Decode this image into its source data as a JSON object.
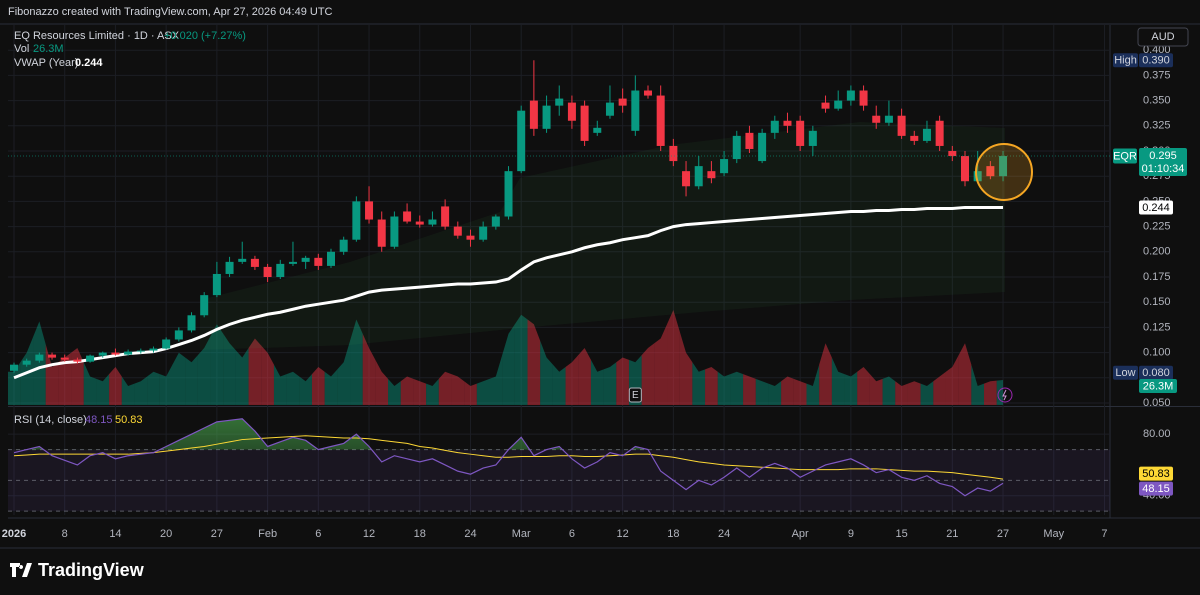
{
  "header": {
    "text": "Fibonazzo created with TradingView.com, Apr 27, 2026 04:49 UTC"
  },
  "footer": {
    "brand": "TradingView"
  },
  "chart_data": [
    {
      "type": "candlestick",
      "title": "EQ Resources Limited · 1D · ASX",
      "change_label": "+0.020 (+7.27%)",
      "currency": "AUD",
      "categories": [
        "2026-01-02",
        "2026-01-05",
        "2026-01-06",
        "2026-01-07",
        "2026-01-08",
        "2026-01-09",
        "2026-01-12",
        "2026-01-13",
        "2026-01-14",
        "2026-01-15",
        "2026-01-16",
        "2026-01-19",
        "2026-01-20",
        "2026-01-21",
        "2026-01-22",
        "2026-01-23",
        "2026-01-27",
        "2026-01-28",
        "2026-01-29",
        "2026-01-30",
        "2026-02-02",
        "2026-02-03",
        "2026-02-04",
        "2026-02-05",
        "2026-02-06",
        "2026-02-09",
        "2026-02-10",
        "2026-02-11",
        "2026-02-12",
        "2026-02-13",
        "2026-02-16",
        "2026-02-17",
        "2026-02-18",
        "2026-02-19",
        "2026-02-20",
        "2026-02-23",
        "2026-02-24",
        "2026-02-25",
        "2026-02-26",
        "2026-02-27",
        "2026-03-02",
        "2026-03-03",
        "2026-03-04",
        "2026-03-05",
        "2026-03-06",
        "2026-03-09",
        "2026-03-10",
        "2026-03-11",
        "2026-03-12",
        "2026-03-13",
        "2026-03-16",
        "2026-03-17",
        "2026-03-18",
        "2026-03-19",
        "2026-03-20",
        "2026-03-23",
        "2026-03-24",
        "2026-03-25",
        "2026-03-26",
        "2026-03-27",
        "2026-03-30",
        "2026-03-31",
        "2026-04-01",
        "2026-04-02",
        "2026-04-07",
        "2026-04-08",
        "2026-04-09",
        "2026-04-10",
        "2026-04-13",
        "2026-04-14",
        "2026-04-15",
        "2026-04-16",
        "2026-04-17",
        "2026-04-20",
        "2026-04-21",
        "2026-04-22",
        "2026-04-23",
        "2026-04-24",
        "2026-04-27"
      ],
      "open": [
        0.082,
        0.088,
        0.092,
        0.098,
        0.095,
        0.093,
        0.091,
        0.097,
        0.1,
        0.098,
        0.101,
        0.102,
        0.104,
        0.113,
        0.122,
        0.137,
        0.157,
        0.178,
        0.19,
        0.193,
        0.185,
        0.175,
        0.188,
        0.19,
        0.194,
        0.186,
        0.2,
        0.212,
        0.25,
        0.232,
        0.205,
        0.24,
        0.23,
        0.227,
        0.245,
        0.225,
        0.216,
        0.212,
        0.225,
        0.235,
        0.28,
        0.35,
        0.322,
        0.345,
        0.348,
        0.345,
        0.318,
        0.335,
        0.352,
        0.32,
        0.36,
        0.355,
        0.305,
        0.28,
        0.265,
        0.28,
        0.278,
        0.292,
        0.318,
        0.29,
        0.318,
        0.33,
        0.33,
        0.305,
        0.348,
        0.342,
        0.35,
        0.36,
        0.335,
        0.328,
        0.335,
        0.315,
        0.31,
        0.33,
        0.3,
        0.295,
        0.27,
        0.285,
        0.275
      ],
      "high": [
        0.09,
        0.094,
        0.1,
        0.1,
        0.098,
        0.095,
        0.098,
        0.101,
        0.104,
        0.103,
        0.104,
        0.106,
        0.115,
        0.125,
        0.14,
        0.16,
        0.19,
        0.195,
        0.21,
        0.196,
        0.188,
        0.192,
        0.21,
        0.196,
        0.198,
        0.203,
        0.215,
        0.255,
        0.265,
        0.24,
        0.24,
        0.248,
        0.236,
        0.24,
        0.252,
        0.23,
        0.222,
        0.23,
        0.237,
        0.285,
        0.345,
        0.39,
        0.355,
        0.365,
        0.355,
        0.35,
        0.33,
        0.365,
        0.362,
        0.375,
        0.365,
        0.365,
        0.312,
        0.29,
        0.295,
        0.29,
        0.3,
        0.32,
        0.325,
        0.322,
        0.335,
        0.338,
        0.335,
        0.325,
        0.355,
        0.36,
        0.365,
        0.365,
        0.345,
        0.35,
        0.342,
        0.32,
        0.33,
        0.335,
        0.305,
        0.3,
        0.3,
        0.29,
        0.3
      ],
      "low": [
        0.08,
        0.086,
        0.09,
        0.093,
        0.091,
        0.089,
        0.09,
        0.095,
        0.097,
        0.097,
        0.099,
        0.1,
        0.103,
        0.111,
        0.12,
        0.135,
        0.155,
        0.175,
        0.188,
        0.182,
        0.17,
        0.173,
        0.186,
        0.183,
        0.182,
        0.184,
        0.197,
        0.21,
        0.228,
        0.2,
        0.203,
        0.228,
        0.224,
        0.225,
        0.222,
        0.213,
        0.205,
        0.21,
        0.222,
        0.232,
        0.278,
        0.315,
        0.318,
        0.335,
        0.322,
        0.305,
        0.315,
        0.332,
        0.338,
        0.315,
        0.352,
        0.3,
        0.285,
        0.255,
        0.262,
        0.268,
        0.275,
        0.288,
        0.298,
        0.288,
        0.312,
        0.318,
        0.3,
        0.295,
        0.338,
        0.34,
        0.345,
        0.34,
        0.322,
        0.325,
        0.312,
        0.306,
        0.308,
        0.3,
        0.29,
        0.265,
        0.268,
        0.272,
        0.27
      ],
      "close": [
        0.088,
        0.092,
        0.098,
        0.095,
        0.093,
        0.091,
        0.097,
        0.1,
        0.098,
        0.101,
        0.102,
        0.104,
        0.113,
        0.122,
        0.137,
        0.157,
        0.178,
        0.19,
        0.193,
        0.185,
        0.175,
        0.188,
        0.19,
        0.194,
        0.186,
        0.2,
        0.212,
        0.25,
        0.232,
        0.205,
        0.235,
        0.23,
        0.227,
        0.232,
        0.225,
        0.216,
        0.212,
        0.225,
        0.235,
        0.28,
        0.34,
        0.322,
        0.345,
        0.352,
        0.33,
        0.31,
        0.323,
        0.348,
        0.345,
        0.36,
        0.355,
        0.305,
        0.29,
        0.265,
        0.285,
        0.273,
        0.292,
        0.315,
        0.302,
        0.318,
        0.33,
        0.325,
        0.305,
        0.32,
        0.342,
        0.35,
        0.36,
        0.345,
        0.328,
        0.335,
        0.315,
        0.31,
        0.322,
        0.305,
        0.295,
        0.27,
        0.28,
        0.275,
        0.295
      ],
      "up_color": "#089981",
      "down_color": "#f23645",
      "ylim": [
        0.048,
        0.425
      ],
      "yticks": [
        {
          "value": 0.4,
          "label": "0.400"
        },
        {
          "value": 0.375,
          "label": "0.375"
        },
        {
          "value": 0.35,
          "label": "0.350"
        },
        {
          "value": 0.325,
          "label": "0.325"
        },
        {
          "value": 0.3,
          "label": "0.300"
        },
        {
          "value": 0.275,
          "label": "0.275"
        },
        {
          "value": 0.25,
          "label": "0.250"
        },
        {
          "value": 0.225,
          "label": "0.225"
        },
        {
          "value": 0.2,
          "label": "0.200"
        },
        {
          "value": 0.175,
          "label": "0.175"
        },
        {
          "value": 0.15,
          "label": "0.150"
        },
        {
          "value": 0.125,
          "label": "0.125"
        },
        {
          "value": 0.1,
          "label": "0.100"
        },
        {
          "value": 0.075,
          "label": "0.075"
        },
        {
          "value": 0.05,
          "label": "0.050"
        }
      ],
      "xticks": [
        {
          "value": "2026-01-02",
          "label": "2026"
        },
        {
          "value": "2026-01-08",
          "label": "8"
        },
        {
          "value": "2026-01-14",
          "label": "14"
        },
        {
          "value": "2026-01-20",
          "label": "20"
        },
        {
          "value": "2026-01-27",
          "label": "27"
        },
        {
          "value": "2026-02-02",
          "label": "Feb"
        },
        {
          "value": "2026-02-06",
          "label": "6"
        },
        {
          "value": "2026-02-12",
          "label": "12"
        },
        {
          "value": "2026-02-18",
          "label": "18"
        },
        {
          "value": "2026-02-24",
          "label": "24"
        },
        {
          "value": "2026-03-02",
          "label": "Mar"
        },
        {
          "value": "2026-03-06",
          "label": "6"
        },
        {
          "value": "2026-03-12",
          "label": "12"
        },
        {
          "value": "2026-03-18",
          "label": "18"
        },
        {
          "value": "2026-03-24",
          "label": "24"
        },
        {
          "value": "2026-04-01",
          "label": "Apr"
        },
        {
          "value": "2026-04-09",
          "label": "9"
        },
        {
          "value": "2026-04-15",
          "label": "15"
        },
        {
          "value": "2026-04-21",
          "label": "21"
        },
        {
          "value": "2026-04-27",
          "label": "27"
        },
        {
          "value": "2026-05-01",
          "label": "May"
        },
        {
          "value": "2026-05-07",
          "label": "7"
        }
      ],
      "grid": true,
      "overlays": [
        {
          "name": "VWAP (Year)",
          "color": "#ffffff",
          "values": [
            0.075,
            0.08,
            0.085,
            0.088,
            0.09,
            0.091,
            0.093,
            0.095,
            0.097,
            0.099,
            0.1,
            0.101,
            0.104,
            0.108,
            0.112,
            0.117,
            0.123,
            0.128,
            0.132,
            0.135,
            0.138,
            0.14,
            0.143,
            0.146,
            0.148,
            0.15,
            0.152,
            0.156,
            0.16,
            0.162,
            0.163,
            0.164,
            0.165,
            0.166,
            0.167,
            0.168,
            0.168,
            0.169,
            0.17,
            0.173,
            0.182,
            0.19,
            0.194,
            0.197,
            0.2,
            0.204,
            0.207,
            0.209,
            0.212,
            0.214,
            0.216,
            0.221,
            0.225,
            0.227,
            0.228,
            0.229,
            0.23,
            0.231,
            0.232,
            0.233,
            0.234,
            0.235,
            0.236,
            0.237,
            0.238,
            0.239,
            0.24,
            0.24,
            0.241,
            0.241,
            0.242,
            0.242,
            0.243,
            0.243,
            0.243,
            0.244,
            0.244,
            0.244,
            0.244
          ]
        }
      ],
      "markers": [
        {
          "x": "2026-03-13",
          "label": "E"
        }
      ],
      "price_labels": [
        {
          "name": "High",
          "value": 0.39,
          "label": "0.390"
        },
        {
          "name": "Low",
          "value": 0.08,
          "label": "0.080"
        }
      ],
      "last_price": {
        "ticker": "EQR",
        "countdown": "01:10:34"
      }
    },
    {
      "type": "volume",
      "name": "Vol",
      "values": [
        35,
        55,
        88,
        40,
        50,
        60,
        30,
        25,
        40,
        20,
        25,
        35,
        30,
        55,
        45,
        60,
        85,
        65,
        50,
        70,
        55,
        30,
        35,
        25,
        40,
        30,
        45,
        90,
        60,
        35,
        20,
        30,
        25,
        20,
        35,
        30,
        20,
        25,
        30,
        75,
        95,
        85,
        50,
        35,
        45,
        60,
        35,
        40,
        50,
        45,
        60,
        70,
        100,
        55,
        35,
        40,
        30,
        35,
        30,
        25,
        20,
        30,
        25,
        20,
        65,
        35,
        30,
        40,
        25,
        30,
        20,
        25,
        20,
        30,
        40,
        65,
        20,
        25,
        26.3
      ],
      "value_label": "26.3M"
    },
    {
      "type": "line",
      "title": "RSI (14, close)",
      "series": [
        {
          "color": "#7e57c2",
          "values": [
            68,
            70,
            72,
            66,
            63,
            60,
            66,
            68,
            64,
            66,
            67,
            68,
            72,
            76,
            80,
            84,
            88,
            89,
            90,
            82,
            72,
            75,
            78,
            76,
            70,
            72,
            74,
            80,
            72,
            62,
            66,
            64,
            62,
            64,
            60,
            56,
            54,
            58,
            60,
            70,
            78,
            66,
            70,
            72,
            64,
            58,
            62,
            68,
            66,
            72,
            70,
            56,
            50,
            44,
            50,
            47,
            52,
            58,
            52,
            58,
            61,
            58,
            52,
            56,
            60,
            62,
            64,
            60,
            55,
            57,
            52,
            50,
            53,
            48,
            46,
            40,
            45,
            43,
            48.15
          ]
        },
        {
          "color": "#fdd835",
          "values": [
            66,
            66.5,
            67,
            67,
            67,
            67,
            67,
            67,
            67,
            67,
            67.5,
            68,
            69,
            70,
            71,
            72,
            73.5,
            75,
            76.5,
            77,
            77.5,
            78,
            78.5,
            79,
            78.5,
            78,
            77.5,
            77.5,
            77,
            76,
            75,
            74,
            72,
            71,
            69.5,
            68,
            67,
            66,
            65,
            65,
            65.5,
            65.5,
            65.5,
            66,
            66,
            65.5,
            65.5,
            66,
            66.5,
            67,
            67,
            66,
            65,
            63.5,
            62,
            61,
            60,
            59.5,
            59,
            58.5,
            58,
            57.5,
            57,
            57,
            57,
            57,
            57.5,
            57.5,
            57.5,
            57,
            56.5,
            56,
            56,
            55.5,
            55,
            54,
            53,
            52,
            50.83
          ]
        }
      ],
      "ylim": [
        27.5,
        97
      ],
      "yticks": [
        {
          "value": 80,
          "label": "80.00"
        },
        {
          "value": 40,
          "label": "40.00"
        }
      ],
      "bands": [
        70,
        50,
        30
      ]
    }
  ]
}
